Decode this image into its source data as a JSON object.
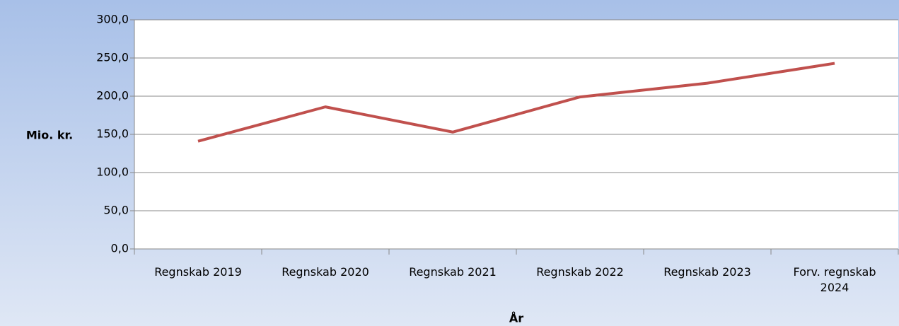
{
  "chart_data": {
    "type": "line",
    "y_label": "Mio. kr.",
    "x_label": "År",
    "categories": [
      "Regnskab 2019",
      "Regnskab 2020",
      "Regnskab 2021",
      "Regnskab 2022",
      "Regnskab 2023",
      "Forv. regnskab 2024"
    ],
    "series": [
      {
        "name": "Mio. kr.",
        "color": "#c0504d",
        "values": [
          141,
          186,
          153,
          199,
          217,
          243
        ]
      }
    ],
    "ylim": [
      0,
      300
    ],
    "yticks": [
      {
        "value": 0,
        "label": "0,0"
      },
      {
        "value": 50,
        "label": "50,0"
      },
      {
        "value": 100,
        "label": "100,0"
      },
      {
        "value": 150,
        "label": "150,0"
      },
      {
        "value": 200,
        "label": "200,0"
      },
      {
        "value": 250,
        "label": "250,0"
      },
      {
        "value": 300,
        "label": "300,0"
      }
    ],
    "grid": true
  }
}
